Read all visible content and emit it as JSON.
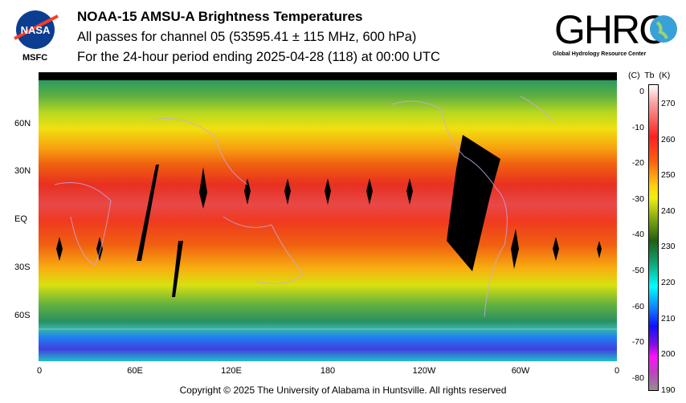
{
  "header": {
    "title": "NOAA-15 AMSU-A Brightness Temperatures",
    "subtitle": "All passes for channel 05 (53595.41 ± 115 MHz, 600 hPa)",
    "period": "For the 24-hour period ending 2025-04-28 (118) at 00:00 UTC"
  },
  "logos": {
    "nasa": "NASA",
    "nasa_sub": "MSFC",
    "ghrc": "GHRC",
    "ghrc_sub": "Global Hydrology Resource Center"
  },
  "map": {
    "lat_labels": [
      "60N",
      "30N",
      "EQ",
      "30S",
      "60S"
    ],
    "lon_labels": [
      "0",
      "60E",
      "120E",
      "180",
      "120W",
      "60W",
      "0"
    ]
  },
  "colorbar": {
    "header": "(C)  Tb  (K)",
    "celsius": [
      "0",
      "-10",
      "-20",
      "-30",
      "-40",
      "-50",
      "-60",
      "-70",
      "-80"
    ],
    "kelvin": [
      "270",
      "260",
      "250",
      "240",
      "230",
      "220",
      "210",
      "200",
      "190"
    ]
  },
  "footer": "Copyright © 2025 The University of Alabama in Huntsville.  All rights reserved"
}
